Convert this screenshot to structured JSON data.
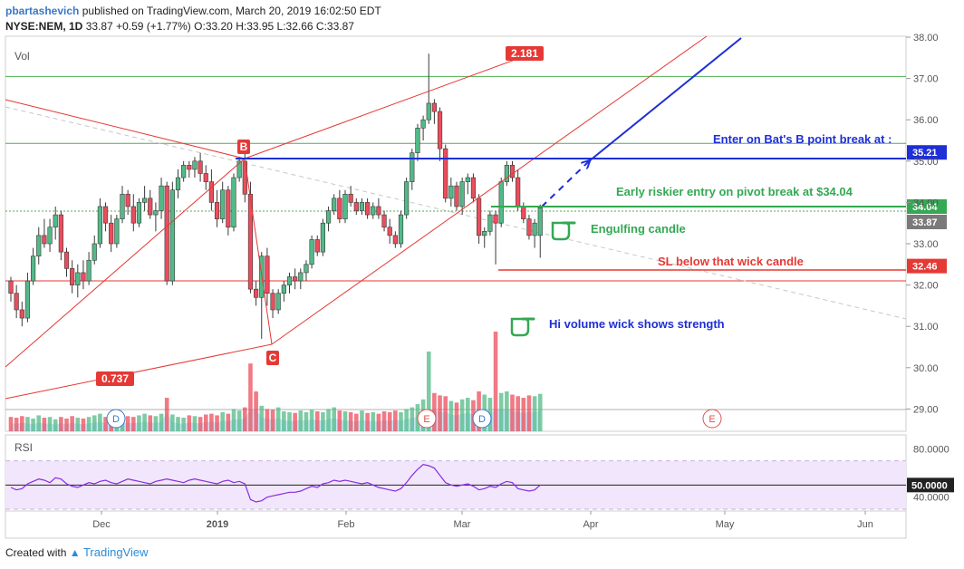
{
  "header": {
    "user": "pbartashevich",
    "published": "published on TradingView.com, March 20, 2019 16:02:50 EDT",
    "symbol": "NYSE:NEM, 1D",
    "last": "33.87",
    "change": "+0.59 (+1.77%)",
    "ohlc": "O:33.20 H:33.95 L:32.66 C:33.87"
  },
  "footer": {
    "created_with": "Created with",
    "brand": "TradingView"
  },
  "colors": {
    "up": "#53b987",
    "down": "#eb4d5c",
    "red_line": "#e53935",
    "blue_line": "#1e2fd6",
    "green_line": "#34a853",
    "rsi": "#8a2be2"
  },
  "chart_data": {
    "type": "candlestick",
    "pane_label": "Vol",
    "y_ticks": [
      "29.00",
      "30.00",
      "31.00",
      "32.00",
      "33.00",
      "34.00",
      "35.00",
      "36.00",
      "37.00",
      "38.00"
    ],
    "ylim": [
      28.5,
      38.2
    ],
    "x_ticks": [
      "Dec",
      "2019",
      "Feb",
      "Mar",
      "Apr",
      "May",
      "Jun"
    ],
    "price_labels": [
      {
        "value": 35.21,
        "text": "35.21",
        "color": "#1e2fd6"
      },
      {
        "value": 34.04,
        "text": "34.04",
        "color": "#34a853"
      },
      {
        "value": 33.87,
        "text": "33.87",
        "color": "#7a7a7a"
      },
      {
        "value": 32.46,
        "text": "32.46",
        "color": "#e53935"
      }
    ],
    "candles": [
      [
        32.1,
        32.2,
        31.6,
        31.8
      ],
      [
        31.8,
        32.0,
        31.2,
        31.4
      ],
      [
        31.4,
        31.6,
        31.0,
        31.2
      ],
      [
        31.2,
        32.3,
        31.1,
        32.1
      ],
      [
        32.1,
        32.9,
        32.0,
        32.7
      ],
      [
        32.7,
        33.4,
        32.5,
        33.2
      ],
      [
        33.2,
        33.6,
        32.9,
        33.0
      ],
      [
        33.0,
        33.6,
        32.8,
        33.4
      ],
      [
        33.4,
        33.9,
        33.1,
        33.7
      ],
      [
        33.7,
        33.8,
        32.6,
        32.8
      ],
      [
        32.8,
        32.9,
        32.2,
        32.4
      ],
      [
        32.4,
        32.6,
        31.8,
        32.0
      ],
      [
        32.0,
        32.5,
        31.7,
        32.3
      ],
      [
        32.3,
        32.6,
        31.9,
        32.1
      ],
      [
        32.1,
        32.8,
        32.0,
        32.6
      ],
      [
        32.6,
        33.2,
        32.5,
        33.0
      ],
      [
        33.0,
        34.1,
        32.9,
        33.9
      ],
      [
        33.9,
        34.0,
        33.3,
        33.5
      ],
      [
        33.5,
        33.7,
        32.8,
        33.0
      ],
      [
        33.0,
        33.7,
        32.9,
        33.6
      ],
      [
        33.6,
        34.4,
        33.5,
        34.2
      ],
      [
        34.2,
        34.3,
        33.7,
        33.9
      ],
      [
        33.9,
        34.2,
        33.3,
        33.5
      ],
      [
        33.5,
        34.1,
        33.4,
        34.0
      ],
      [
        34.0,
        34.4,
        33.8,
        34.1
      ],
      [
        34.1,
        34.3,
        33.6,
        33.7
      ],
      [
        33.7,
        34.0,
        33.3,
        33.8
      ],
      [
        33.8,
        34.6,
        33.6,
        34.4
      ],
      [
        34.4,
        34.5,
        32.0,
        32.1
      ],
      [
        32.1,
        34.5,
        32.0,
        34.3
      ],
      [
        34.3,
        34.8,
        34.1,
        34.6
      ],
      [
        34.6,
        35.0,
        34.5,
        34.9
      ],
      [
        34.9,
        35.0,
        34.6,
        34.8
      ],
      [
        34.8,
        35.1,
        34.6,
        35.0
      ],
      [
        35.0,
        35.2,
        34.5,
        34.7
      ],
      [
        34.7,
        34.9,
        34.3,
        34.5
      ],
      [
        34.5,
        34.8,
        33.8,
        34.0
      ],
      [
        34.0,
        34.3,
        33.4,
        33.6
      ],
      [
        33.6,
        34.5,
        33.5,
        34.3
      ],
      [
        34.3,
        34.4,
        33.2,
        33.4
      ],
      [
        33.4,
        34.7,
        33.3,
        34.6
      ],
      [
        34.6,
        35.1,
        34.5,
        35.0
      ],
      [
        35.0,
        35.2,
        34.0,
        34.2
      ],
      [
        34.2,
        34.5,
        31.8,
        31.9
      ],
      [
        31.9,
        32.1,
        31.5,
        31.7
      ],
      [
        31.7,
        32.8,
        30.7,
        32.7
      ],
      [
        32.7,
        32.9,
        31.5,
        31.8
      ],
      [
        31.8,
        31.9,
        31.2,
        31.4
      ],
      [
        31.4,
        31.9,
        31.3,
        31.8
      ],
      [
        31.8,
        32.1,
        31.6,
        32.0
      ],
      [
        32.0,
        32.3,
        31.8,
        32.2
      ],
      [
        32.2,
        32.4,
        31.9,
        32.1
      ],
      [
        32.1,
        32.4,
        31.9,
        32.3
      ],
      [
        32.3,
        32.6,
        32.1,
        32.5
      ],
      [
        32.5,
        33.2,
        32.4,
        33.1
      ],
      [
        33.1,
        33.2,
        32.7,
        32.8
      ],
      [
        32.8,
        33.6,
        32.7,
        33.5
      ],
      [
        33.5,
        33.9,
        33.3,
        33.8
      ],
      [
        33.8,
        34.2,
        33.7,
        34.1
      ],
      [
        34.1,
        34.3,
        33.5,
        33.6
      ],
      [
        33.6,
        34.3,
        33.5,
        34.2
      ],
      [
        34.2,
        34.4,
        33.9,
        34.0
      ],
      [
        34.0,
        34.1,
        33.7,
        33.8
      ],
      [
        33.8,
        34.1,
        33.7,
        34.0
      ],
      [
        34.0,
        34.1,
        33.6,
        33.7
      ],
      [
        33.7,
        34.0,
        33.6,
        33.9
      ],
      [
        33.9,
        34.1,
        33.6,
        33.7
      ],
      [
        33.7,
        33.8,
        33.3,
        33.4
      ],
      [
        33.4,
        33.6,
        33.0,
        33.2
      ],
      [
        33.2,
        33.3,
        32.9,
        33.0
      ],
      [
        33.0,
        33.8,
        32.9,
        33.7
      ],
      [
        33.7,
        34.6,
        33.6,
        34.5
      ],
      [
        34.5,
        35.3,
        34.3,
        35.2
      ],
      [
        35.2,
        35.9,
        35.0,
        35.8
      ],
      [
        35.8,
        36.1,
        35.5,
        36.0
      ],
      [
        36.0,
        37.6,
        35.9,
        36.4
      ],
      [
        36.4,
        36.5,
        35.9,
        36.2
      ],
      [
        36.2,
        36.3,
        35.0,
        35.3
      ],
      [
        35.3,
        35.4,
        34.0,
        34.1
      ],
      [
        34.1,
        34.6,
        33.9,
        34.4
      ],
      [
        34.4,
        34.5,
        33.8,
        33.9
      ],
      [
        33.9,
        34.6,
        33.7,
        34.5
      ],
      [
        34.5,
        34.7,
        34.2,
        34.6
      ],
      [
        34.6,
        34.7,
        34.0,
        34.1
      ],
      [
        34.1,
        34.2,
        33.0,
        33.2
      ],
      [
        33.2,
        33.4,
        32.9,
        33.3
      ],
      [
        33.3,
        33.8,
        33.2,
        33.7
      ],
      [
        33.7,
        33.8,
        32.5,
        33.5
      ],
      [
        33.5,
        34.6,
        33.4,
        34.5
      ],
      [
        34.5,
        35.0,
        34.4,
        34.9
      ],
      [
        34.9,
        35.0,
        34.5,
        34.6
      ],
      [
        34.6,
        34.8,
        33.8,
        33.9
      ],
      [
        33.9,
        34.0,
        33.5,
        33.6
      ],
      [
        33.6,
        33.7,
        33.1,
        33.2
      ],
      [
        33.2,
        33.6,
        32.9,
        33.5
      ],
      [
        33.2,
        33.95,
        32.66,
        33.87
      ]
    ],
    "volumes": [
      0.18,
      0.17,
      0.19,
      0.18,
      0.16,
      0.2,
      0.17,
      0.18,
      0.15,
      0.18,
      0.16,
      0.19,
      0.17,
      0.16,
      0.18,
      0.2,
      0.22,
      0.18,
      0.17,
      0.2,
      0.21,
      0.19,
      0.18,
      0.2,
      0.22,
      0.2,
      0.19,
      0.22,
      0.42,
      0.21,
      0.18,
      0.17,
      0.2,
      0.19,
      0.18,
      0.21,
      0.22,
      0.2,
      0.24,
      0.22,
      0.28,
      0.26,
      0.3,
      0.85,
      0.5,
      0.32,
      0.28,
      0.27,
      0.3,
      0.25,
      0.24,
      0.23,
      0.26,
      0.24,
      0.27,
      0.25,
      0.24,
      0.28,
      0.3,
      0.26,
      0.25,
      0.24,
      0.22,
      0.26,
      0.23,
      0.24,
      0.22,
      0.25,
      0.24,
      0.26,
      0.24,
      0.28,
      0.3,
      0.34,
      0.4,
      1.0,
      0.48,
      0.45,
      0.44,
      0.38,
      0.36,
      0.4,
      0.42,
      0.39,
      0.5,
      0.46,
      0.42,
      1.25,
      0.48,
      0.5,
      0.46,
      0.44,
      0.42,
      0.45,
      0.44,
      0.47
    ],
    "horizontal_levels": [
      {
        "value": 37.05,
        "color": "#4caf50"
      },
      {
        "value": 35.43,
        "color": "#4caf50"
      },
      {
        "value": 32.1,
        "color": "#e53935"
      }
    ],
    "annotations": [
      {
        "text": "Enter on Bat's B point break at :",
        "color": "#1e2fd6"
      },
      {
        "text": "Early riskier entry on pivot break at $34.04",
        "color": "#34a853"
      },
      {
        "text": "Engulfing candle",
        "color": "#34a853"
      },
      {
        "text": "SL below that wick candle",
        "color": "#e53935"
      },
      {
        "text": "Hi volume wick shows strength",
        "color": "#1e2fd6"
      }
    ],
    "pattern_labels": [
      {
        "text": "2.181"
      },
      {
        "text": "0.737"
      },
      {
        "text": "B"
      },
      {
        "text": "C"
      }
    ],
    "events": [
      "D",
      "E",
      "D",
      "E"
    ],
    "rsi": {
      "label": "RSI",
      "ticks": [
        "80.0000",
        "40.0000"
      ],
      "current": "50.0000",
      "ylim": [
        30,
        90
      ],
      "bands": [
        70,
        30
      ],
      "values": [
        48,
        46,
        47,
        51,
        53,
        55,
        54,
        52,
        56,
        55,
        51,
        49,
        48,
        50,
        52,
        51,
        53,
        54,
        52,
        51,
        53,
        55,
        54,
        53,
        52,
        51,
        53,
        54,
        55,
        54,
        53,
        52,
        54,
        55,
        54,
        53,
        52,
        51,
        53,
        54,
        52,
        53,
        51,
        38,
        36,
        37,
        40,
        41,
        42,
        43,
        44,
        44,
        45,
        47,
        49,
        48,
        51,
        52,
        54,
        53,
        54,
        53,
        52,
        51,
        52,
        50,
        48,
        47,
        46,
        45,
        47,
        52,
        58,
        63,
        67,
        66,
        64,
        58,
        52,
        50,
        49,
        50,
        51,
        49,
        46,
        47,
        49,
        48,
        51,
        53,
        52,
        47,
        46,
        45,
        46,
        50
      ]
    }
  }
}
